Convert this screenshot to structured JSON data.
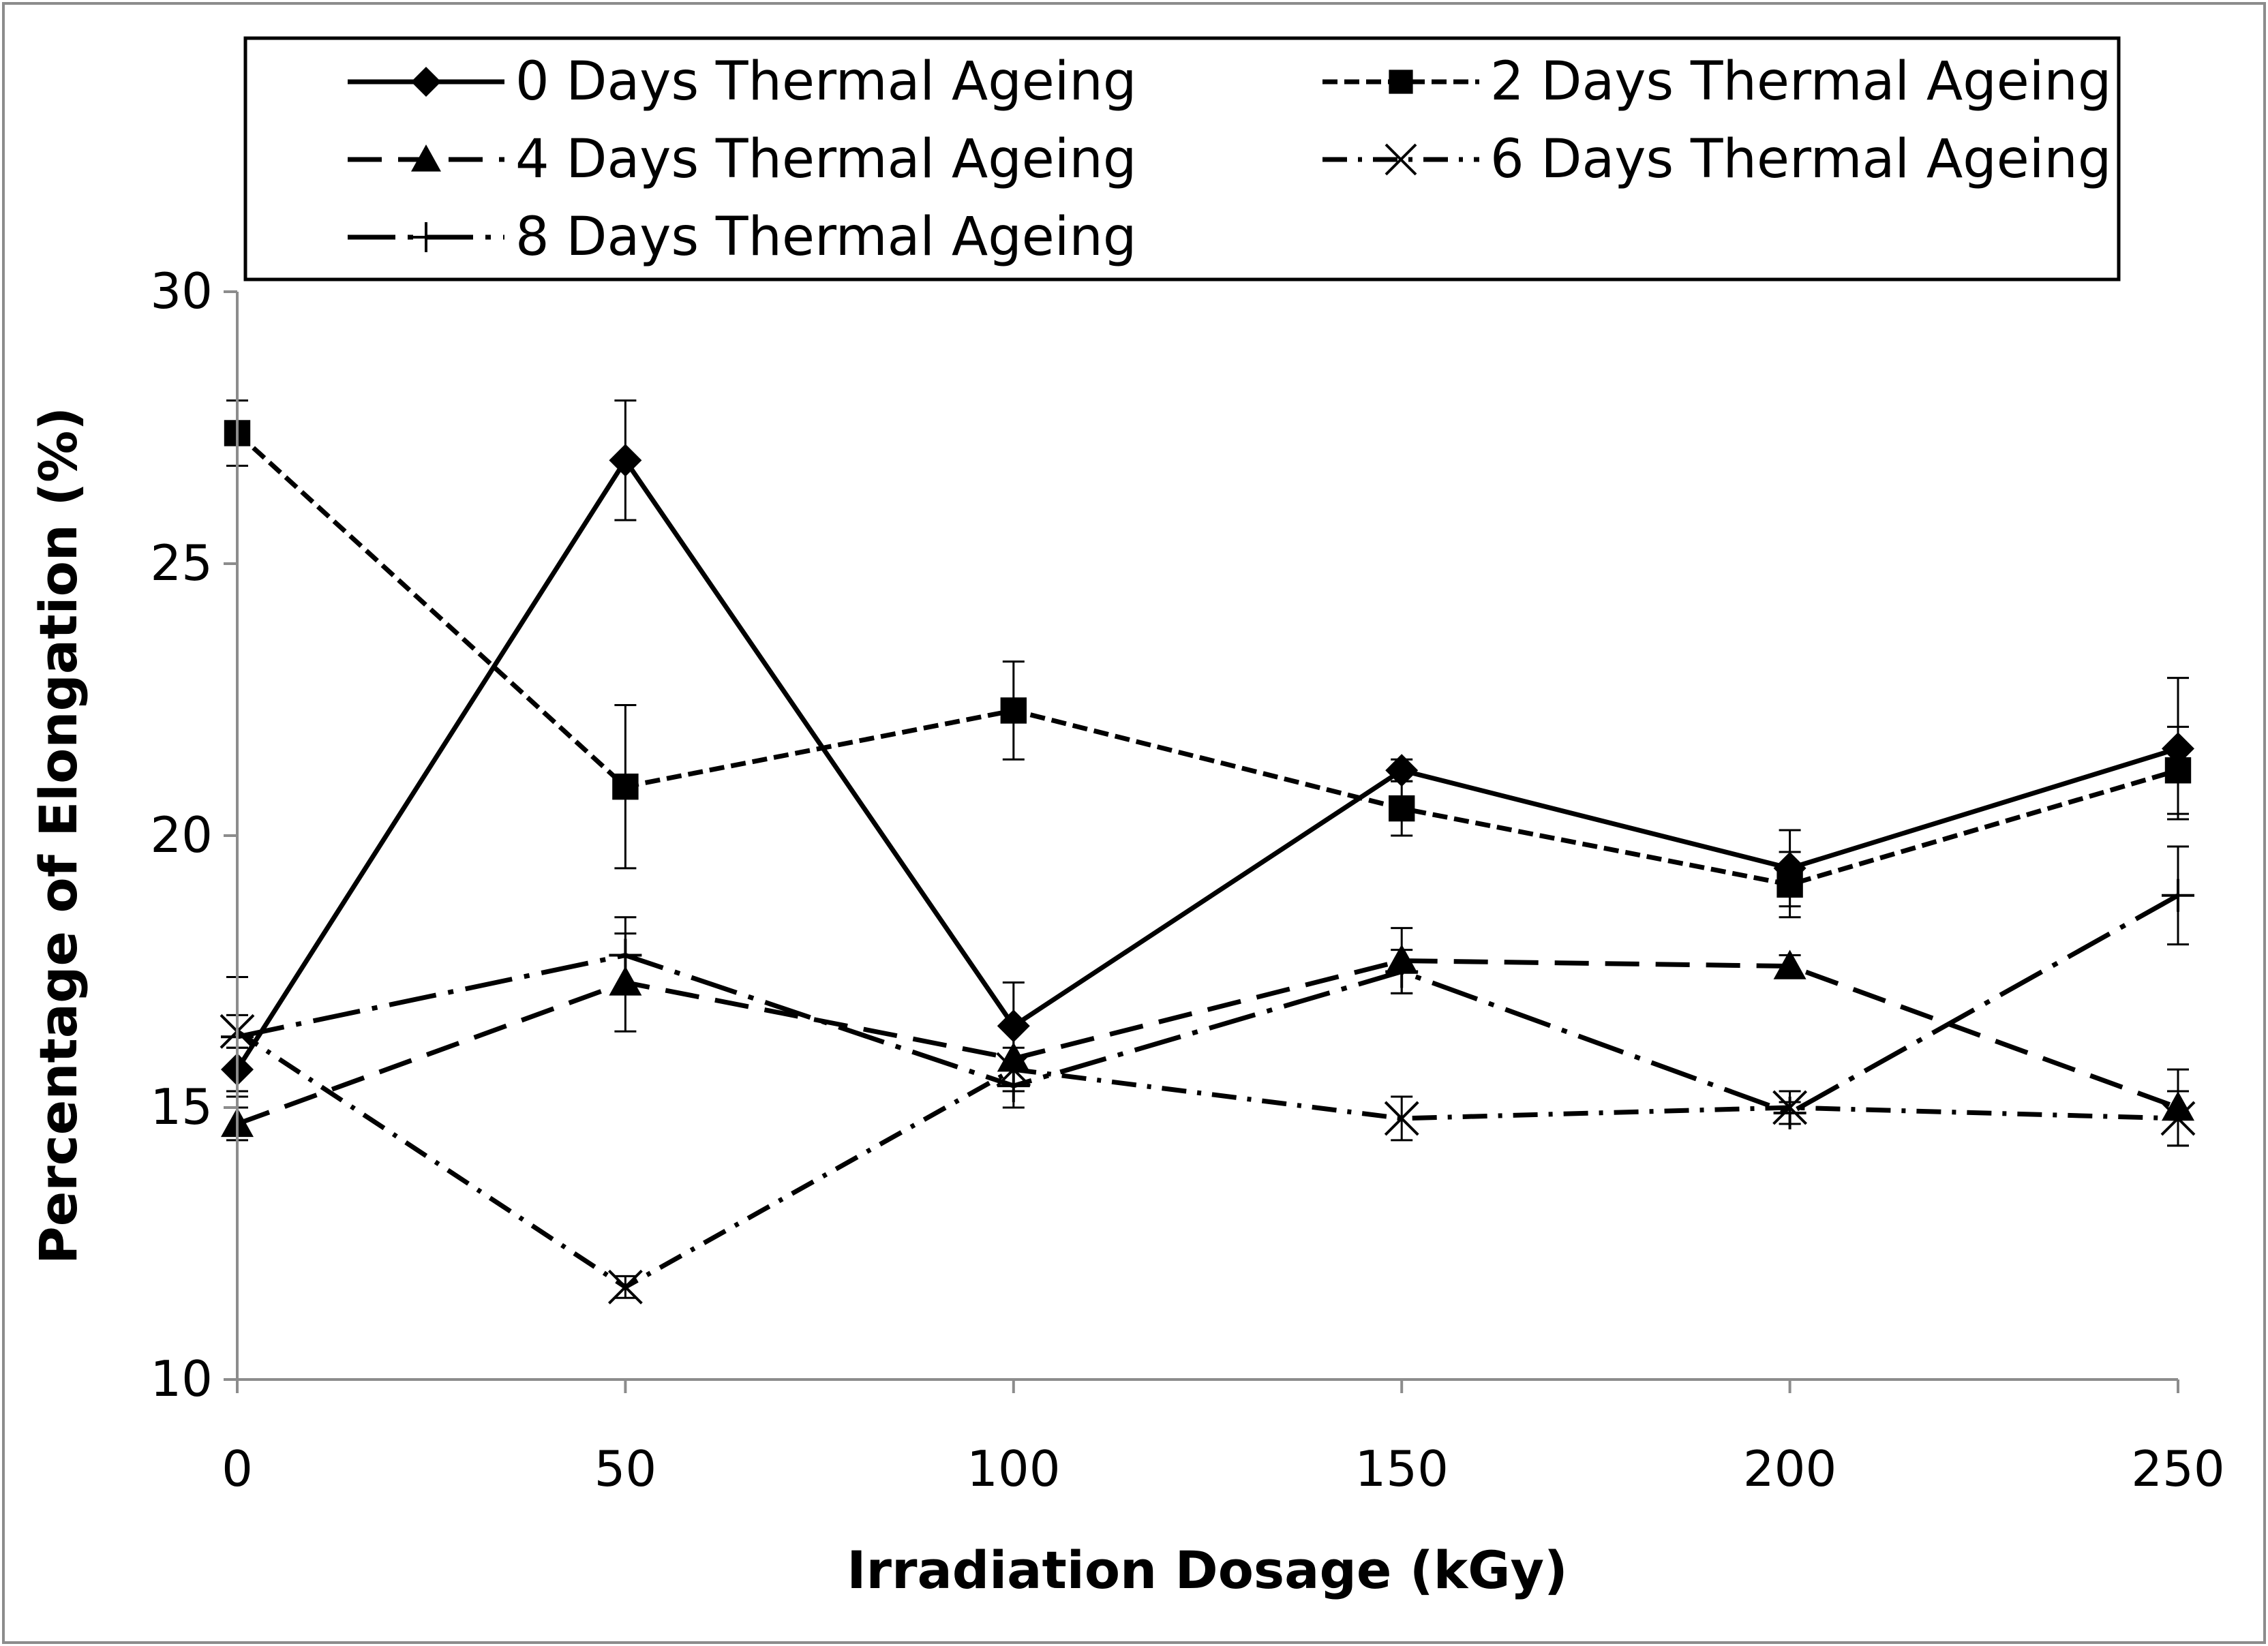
{
  "chart_data": {
    "type": "line",
    "title": "",
    "xlabel": "Irradiation Dosage (kGy)",
    "ylabel": "Percentage of Elongation (%)",
    "x": [
      0,
      50,
      100,
      150,
      200,
      250
    ],
    "xlim": [
      0,
      250
    ],
    "ylim": [
      10,
      30
    ],
    "x_ticks": [
      "0",
      "50",
      "100",
      "150",
      "200",
      "250"
    ],
    "y_ticks": [
      "10",
      "15",
      "20",
      "25",
      "30"
    ],
    "grid": false,
    "legend_position": "top",
    "series": [
      {
        "name": "0 Days Thermal Ageing",
        "marker": "diamond",
        "line_style": "solid",
        "values": [
          15.7,
          26.9,
          16.5,
          21.2,
          19.4,
          21.6
        ],
        "error": [
          0.4,
          1.1,
          0.8,
          0.2,
          0.7,
          1.3
        ]
      },
      {
        "name": "2 Days Thermal Ageing",
        "marker": "square",
        "line_style": "short-dash",
        "values": [
          27.4,
          20.9,
          22.3,
          20.5,
          19.1,
          21.2
        ],
        "error": [
          0.6,
          1.5,
          0.9,
          0.5,
          0.6,
          0.8
        ]
      },
      {
        "name": "4 Days Thermal Ageing",
        "marker": "triangle",
        "line_style": "long-dash",
        "values": [
          14.7,
          17.3,
          15.9,
          17.7,
          17.6,
          15.0
        ],
        "error": [
          0.3,
          0.9,
          0.6,
          0.6,
          0.2,
          0.7
        ]
      },
      {
        "name": "6 Days Thermal Ageing",
        "marker": "x",
        "line_style": "dash-dot",
        "values": [
          16.4,
          11.7,
          15.7,
          14.8,
          15.0,
          14.8
        ],
        "error": [
          0.3,
          0.2,
          0.4,
          0.4,
          0.3,
          0.5
        ]
      },
      {
        "name": "8 Days Thermal Ageing",
        "marker": "plus",
        "line_style": "long-dash-dot",
        "values": [
          16.3,
          17.8,
          15.4,
          17.5,
          14.9,
          18.9
        ],
        "error": [
          1.1,
          0.7,
          0.4,
          0.4,
          0.2,
          0.9
        ]
      }
    ]
  }
}
